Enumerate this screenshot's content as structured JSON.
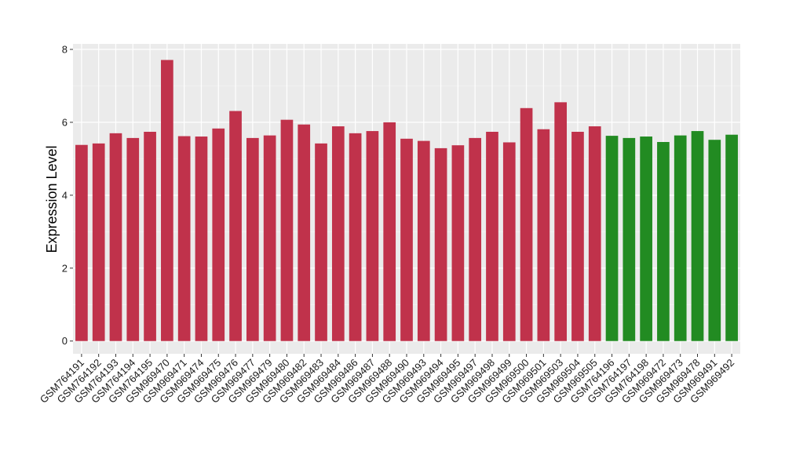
{
  "chart_data": {
    "type": "bar",
    "ylabel": "Expression Level",
    "xlabel": "",
    "ylim": [
      -0.35,
      8.15
    ],
    "yticks": [
      0,
      2,
      4,
      6,
      8
    ],
    "grid": true,
    "colors": {
      "red": "#c0324b",
      "green": "#228b22",
      "panel": "#ebebeb",
      "grid": "#ffffff"
    },
    "categories": [
      "GSM764191",
      "GSM764192",
      "GSM764193",
      "GSM764194",
      "GSM764195",
      "GSM969470",
      "GSM969471",
      "GSM969474",
      "GSM969475",
      "GSM969476",
      "GSM969477",
      "GSM969479",
      "GSM969480",
      "GSM969482",
      "GSM969483",
      "GSM969484",
      "GSM969486",
      "GSM969487",
      "GSM969488",
      "GSM969490",
      "GSM969493",
      "GSM969494",
      "GSM969495",
      "GSM969497",
      "GSM969498",
      "GSM969499",
      "GSM969500",
      "GSM969501",
      "GSM969503",
      "GSM969504",
      "GSM969505",
      "GSM764196",
      "GSM764197",
      "GSM764198",
      "GSM969472",
      "GSM969473",
      "GSM969478",
      "GSM969491",
      "GSM969492"
    ],
    "values": [
      5.38,
      5.42,
      5.7,
      5.57,
      5.74,
      7.71,
      5.62,
      5.61,
      5.83,
      6.31,
      5.57,
      5.64,
      6.07,
      5.94,
      5.42,
      5.89,
      5.7,
      5.76,
      6.0,
      5.55,
      5.49,
      5.29,
      5.37,
      5.57,
      5.74,
      5.45,
      6.39,
      5.81,
      6.55,
      5.74,
      5.89,
      5.63,
      5.57,
      5.61,
      5.46,
      5.64,
      5.76,
      5.52,
      5.66
    ],
    "bar_colors": [
      "red",
      "red",
      "red",
      "red",
      "red",
      "red",
      "red",
      "red",
      "red",
      "red",
      "red",
      "red",
      "red",
      "red",
      "red",
      "red",
      "red",
      "red",
      "red",
      "red",
      "red",
      "red",
      "red",
      "red",
      "red",
      "red",
      "red",
      "red",
      "red",
      "red",
      "red",
      "green",
      "green",
      "green",
      "green",
      "green",
      "green",
      "green",
      "green"
    ]
  }
}
